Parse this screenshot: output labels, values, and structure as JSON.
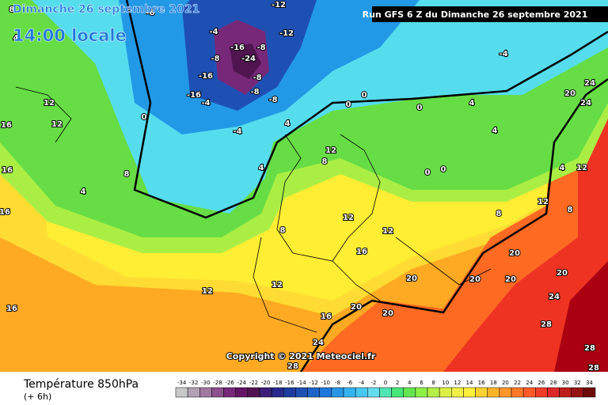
{
  "header": {
    "date": "Dimanche 26 septembre 2021",
    "time": "14:00 locale",
    "run": "Run GFS 6 Z du Dimanche 26 septembre 2021"
  },
  "copyright": "Copyright © 2021 Meteociel.fr",
  "footer": {
    "title": "Température 850hPa",
    "step": "(+ 6h)"
  },
  "legend": {
    "values": [
      -34,
      -32,
      -30,
      -28,
      -26,
      -24,
      -22,
      -20,
      -18,
      -16,
      -14,
      -12,
      -10,
      -8,
      -6,
      -4,
      -2,
      0,
      2,
      4,
      6,
      8,
      10,
      12,
      14,
      16,
      18,
      20,
      22,
      24,
      26,
      28,
      30,
      32,
      34
    ],
    "colors": [
      "#c8c8c8",
      "#b4a0b4",
      "#a078a0",
      "#8c508c",
      "#782878",
      "#641464",
      "#501450",
      "#3c1e78",
      "#28288c",
      "#1e3ca0",
      "#1e50b4",
      "#1e64c8",
      "#1e78dc",
      "#2896e6",
      "#32b4f0",
      "#46c8f0",
      "#64dcf0",
      "#50e6b4",
      "#46e678",
      "#64e650",
      "#8cf046",
      "#b4f046",
      "#dcf046",
      "#f0f046",
      "#fff03c",
      "#ffd232",
      "#ffb428",
      "#ff9628",
      "#ff7828",
      "#ff5a28",
      "#f03c28",
      "#dc2828",
      "#be1e1e",
      "#961414",
      "#6e0a0a"
    ]
  },
  "map_labels": [
    -12,
    -8,
    -4,
    -12,
    -8,
    -8,
    -16,
    -24,
    -16,
    -8,
    -16,
    -4,
    -8,
    -8,
    0,
    -4,
    4,
    4,
    12,
    8,
    8,
    12,
    12,
    16,
    12,
    12,
    16,
    20,
    20,
    20,
    20,
    20,
    20,
    24,
    24,
    20,
    24,
    -4,
    4,
    0,
    0,
    0,
    0,
    0,
    4,
    4,
    12,
    12,
    8,
    8,
    20,
    28,
    28,
    28,
    28,
    24,
    8,
    12,
    12,
    16,
    16,
    16,
    16,
    4,
    8,
    4
  ]
}
